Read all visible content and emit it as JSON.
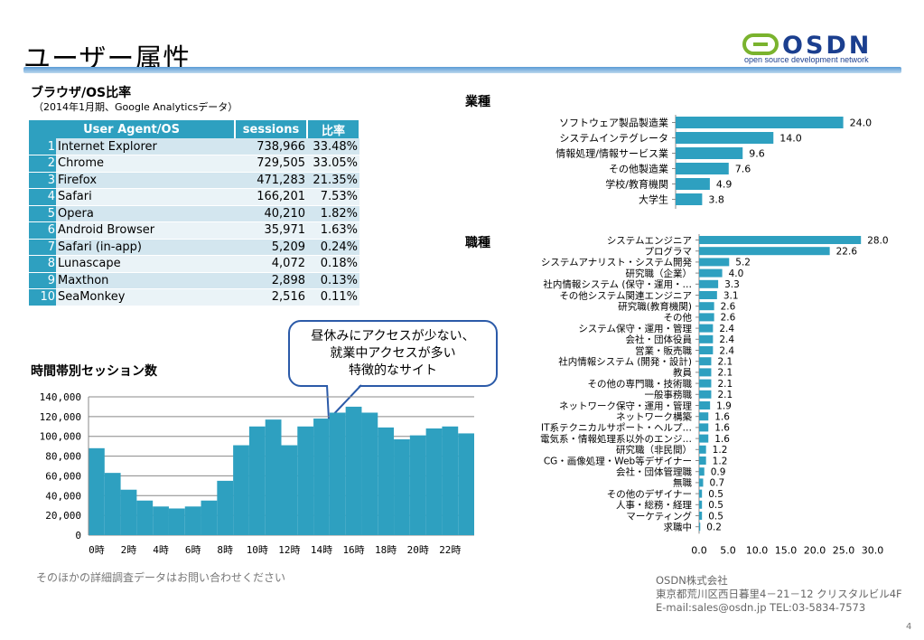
{
  "page": {
    "title": "ユーザー属性",
    "logo_text": "OSDN",
    "logo_tagline": "open source development network",
    "footnote": "そのほかの詳細調査データはお問い合わせください",
    "company": [
      "OSDN株式会社",
      "東京都荒川区西日暮里4－21－12 クリスタルビル4F",
      "E-mail:sales@osdn.jp TEL:03-5834-7573"
    ],
    "page_number": "4",
    "callout": [
      "昼休みにアクセスが少ない、",
      "就業中アクセスが多い",
      "特徴的なサイト"
    ]
  },
  "colors": {
    "bar": "#2ea0c0",
    "header": "#2ea0c0",
    "accent_line": "#5a9bd5",
    "callout_border": "#2b5aa8",
    "logo_green": "#7ab32e",
    "logo_blue": "#1b3f8f"
  },
  "chart_data": [
    {
      "type": "table",
      "title": "ブラウザ/OS比率",
      "subtitle": "（2014年1月期、Google Analyticsデータ）",
      "columns": [
        "User Agent/OS",
        "sessions",
        "比率"
      ],
      "rows": [
        [
          "1",
          "Internet Explorer",
          "738,966",
          "33.48%"
        ],
        [
          "2",
          "Chrome",
          "729,505",
          "33.05%"
        ],
        [
          "3",
          "Firefox",
          "471,283",
          "21.35%"
        ],
        [
          "4",
          "Safari",
          "166,201",
          "7.53%"
        ],
        [
          "5",
          "Opera",
          "40,210",
          "1.82%"
        ],
        [
          "6",
          "Android Browser",
          "35,971",
          "1.63%"
        ],
        [
          "7",
          "Safari (in-app)",
          "5,209",
          "0.24%"
        ],
        [
          "8",
          "Lunascape",
          "4,072",
          "0.18%"
        ],
        [
          "9",
          "Maxthon",
          "2,898",
          "0.13%"
        ],
        [
          "10",
          "SeaMonkey",
          "2,516",
          "0.11%"
        ]
      ]
    },
    {
      "type": "bar",
      "title": "時間帯別セッション数",
      "categories": [
        "0時",
        "1時",
        "2時",
        "3時",
        "4時",
        "5時",
        "6時",
        "7時",
        "8時",
        "9時",
        "10時",
        "11時",
        "12時",
        "13時",
        "14時",
        "15時",
        "16時",
        "17時",
        "18時",
        "19時",
        "20時",
        "21時",
        "22時",
        "23時"
      ],
      "tick_labels": [
        "0時",
        "2時",
        "4時",
        "6時",
        "8時",
        "10時",
        "12時",
        "14時",
        "16時",
        "18時",
        "20時",
        "22時"
      ],
      "values": [
        88000,
        63000,
        46000,
        35000,
        29000,
        27000,
        29000,
        35000,
        55000,
        91000,
        110000,
        117000,
        91000,
        110000,
        118000,
        124000,
        130000,
        124000,
        109000,
        97000,
        101000,
        108000,
        110000,
        103000
      ],
      "ylim": [
        0,
        140000
      ],
      "yticks": [
        "0",
        "20,000",
        "40,000",
        "60,000",
        "80,000",
        "100,000",
        "120,000",
        "140,000"
      ],
      "grid": true
    },
    {
      "type": "bar",
      "orientation": "horizontal",
      "title": "業種",
      "categories": [
        "ソフトウェア製品製造業",
        "システムインテグレータ",
        "情報処理/情報サービス業",
        "その他製造業",
        "学校/教育機関",
        "大学生"
      ],
      "values": [
        24.0,
        14.0,
        9.6,
        7.6,
        4.9,
        3.8
      ],
      "value_labels": [
        "24.0",
        "14.0",
        "9.6",
        "7.6",
        "4.9",
        "3.8"
      ],
      "xlim": [
        0,
        30
      ]
    },
    {
      "type": "bar",
      "orientation": "horizontal",
      "title": "職種",
      "categories": [
        "システムエンジニア",
        "プログラマ",
        "システムアナリスト・システム開発",
        "研究職（企業）",
        "社内情報システム (保守・運用・…",
        "その他システム関連エンジニア",
        "研究職(教育機関)",
        "その他",
        "システム保守・運用・管理",
        "会社・団体役員",
        "営業・販売職",
        "社内情報システム (開発・設計)",
        "教員",
        "その他の専門職・技術職",
        "一般事務職",
        "ネットワーク保守・運用・管理",
        "ネットワーク構築",
        "IT系テクニカルサポート・ヘルプ…",
        "電気系・情報処理系以外のエンジ…",
        "研究職（非民間）",
        "CG・画像処理・Web等デザイナー",
        "会社・団体管理職",
        "無職",
        "その他のデザイナー",
        "人事・総務・経理",
        "マーケティング",
        "求職中"
      ],
      "values": [
        28.0,
        22.6,
        5.2,
        4.0,
        3.3,
        3.1,
        2.6,
        2.6,
        2.4,
        2.4,
        2.4,
        2.1,
        2.1,
        2.1,
        2.1,
        1.9,
        1.6,
        1.6,
        1.6,
        1.2,
        1.2,
        0.9,
        0.7,
        0.5,
        0.5,
        0.5,
        0.2
      ],
      "value_labels": [
        "28.0",
        "22.6",
        "5.2",
        "4.0",
        "3.3",
        "3.1",
        "2.6",
        "2.6",
        "2.4",
        "2.4",
        "2.4",
        "2.1",
        "2.1",
        "2.1",
        "2.1",
        "1.9",
        "1.6",
        "1.6",
        "1.6",
        "1.2",
        "1.2",
        "0.9",
        "0.7",
        "0.5",
        "0.5",
        "0.5",
        "0.2"
      ],
      "xlim": [
        0,
        30
      ],
      "xticks": [
        "0.0",
        "5.0",
        "10.0",
        "15.0",
        "20.0",
        "25.0",
        "30.0"
      ]
    }
  ]
}
